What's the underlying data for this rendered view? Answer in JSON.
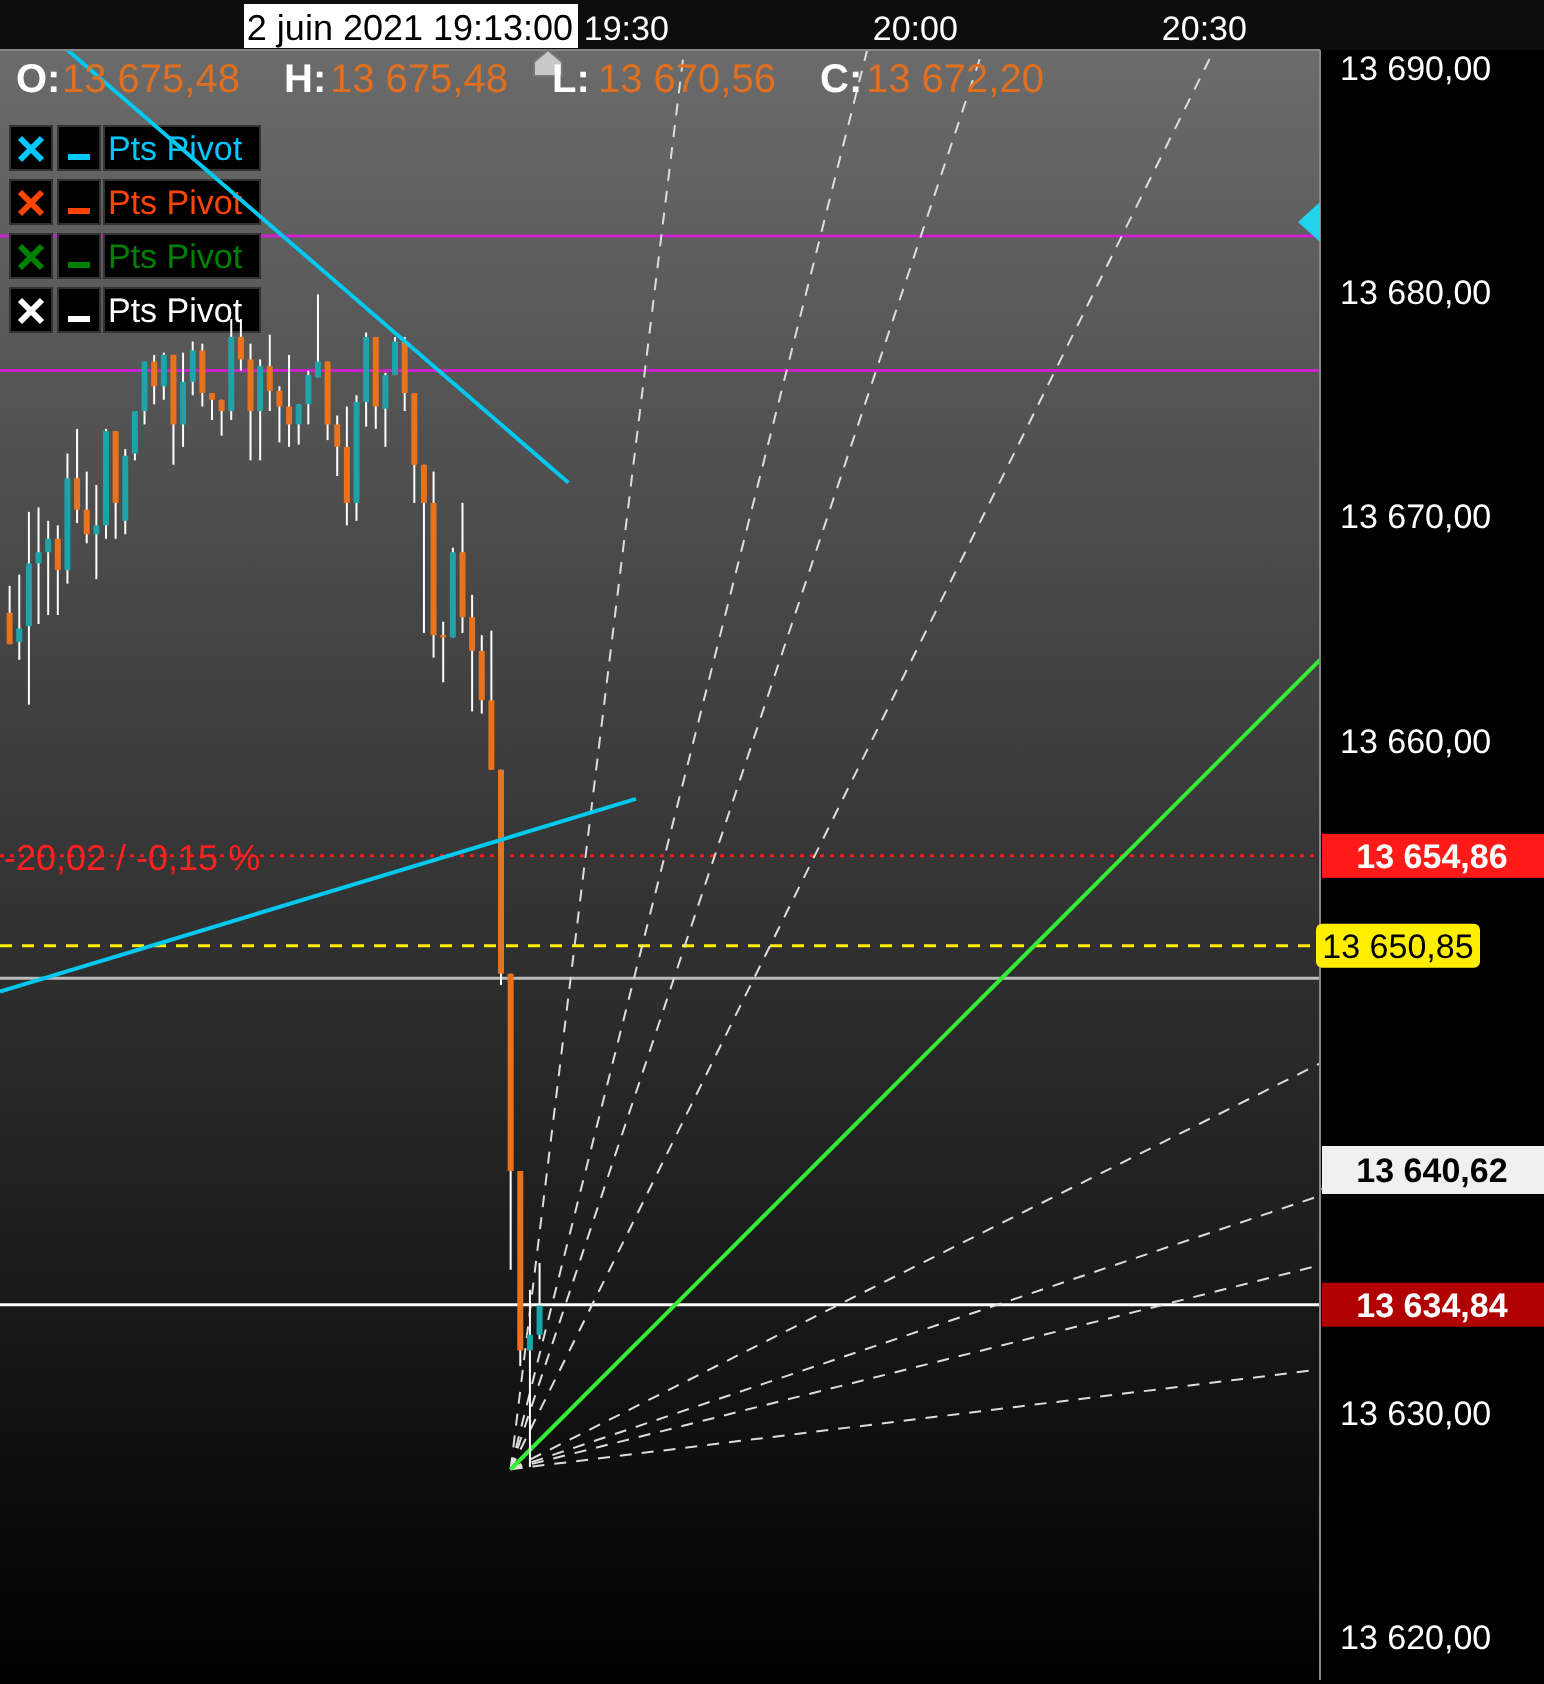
{
  "chart_data": {
    "type": "candlestick",
    "x": [
      "2021-06-02T18:26",
      "2021-06-02T18:27",
      "2021-06-02T18:28",
      "2021-06-02T18:29",
      "2021-06-02T18:30",
      "2021-06-02T18:31",
      "2021-06-02T18:32",
      "2021-06-02T18:33",
      "2021-06-02T18:34",
      "2021-06-02T18:35",
      "2021-06-02T18:36",
      "2021-06-02T18:37",
      "2021-06-02T18:38",
      "2021-06-02T18:39",
      "2021-06-02T18:40",
      "2021-06-02T18:41",
      "2021-06-02T18:42",
      "2021-06-02T18:43",
      "2021-06-02T18:44",
      "2021-06-02T18:45",
      "2021-06-02T18:46",
      "2021-06-02T18:47",
      "2021-06-02T18:48",
      "2021-06-02T18:49",
      "2021-06-02T18:50",
      "2021-06-02T18:51",
      "2021-06-02T18:52",
      "2021-06-02T18:53",
      "2021-06-02T18:54",
      "2021-06-02T18:55",
      "2021-06-02T18:56",
      "2021-06-02T18:57",
      "2021-06-02T18:58",
      "2021-06-02T18:59",
      "2021-06-02T19:00",
      "2021-06-02T19:01",
      "2021-06-02T19:02",
      "2021-06-02T19:03",
      "2021-06-02T19:04",
      "2021-06-02T19:05",
      "2021-06-02T19:06",
      "2021-06-02T19:07",
      "2021-06-02T19:08",
      "2021-06-02T19:09",
      "2021-06-02T19:10",
      "2021-06-02T19:11",
      "2021-06-02T19:12",
      "2021-06-02T19:13",
      "2021-06-02T19:14",
      "2021-06-02T19:15",
      "2021-06-02T19:16",
      "2021-06-02T19:17",
      "2021-06-02T19:18",
      "2021-06-02T19:19",
      "2021-06-02T19:20",
      "2021-06-02T19:21"
    ],
    "ohlc": [
      [
        13665.7,
        13666.9,
        13664.3,
        13664.3
      ],
      [
        13664.4,
        13667.4,
        13663.6,
        13665.0
      ],
      [
        13665.1,
        13670.2,
        13661.6,
        13667.9
      ],
      [
        13667.9,
        13670.4,
        13665.2,
        13668.4
      ],
      [
        13668.4,
        13669.8,
        13665.6,
        13669.0
      ],
      [
        13669.0,
        13669.6,
        13665.6,
        13667.6
      ],
      [
        13667.6,
        13672.8,
        13667.0,
        13671.7
      ],
      [
        13671.7,
        13673.9,
        13669.7,
        13670.3
      ],
      [
        13670.3,
        13672.0,
        13668.8,
        13669.2
      ],
      [
        13669.2,
        13671.4,
        13667.2,
        13669.6
      ],
      [
        13669.6,
        13673.9,
        13669.0,
        13673.8
      ],
      [
        13673.8,
        13673.8,
        13669.0,
        13670.6
      ],
      [
        13669.8,
        13673.0,
        13669.2,
        13672.7
      ],
      [
        13672.8,
        13674.7,
        13672.5,
        13674.7
      ],
      [
        13674.7,
        13676.9,
        13674.1,
        13676.9
      ],
      [
        13676.9,
        13677.2,
        13675.0,
        13675.8
      ],
      [
        13675.8,
        13677.3,
        13675.2,
        13677.2
      ],
      [
        13677.2,
        13677.2,
        13672.3,
        13674.1
      ],
      [
        13674.1,
        13677.3,
        13673.1,
        13676.0
      ],
      [
        13676.0,
        13677.8,
        13675.4,
        13677.4
      ],
      [
        13677.4,
        13677.7,
        13674.9,
        13675.5
      ],
      [
        13675.5,
        13675.5,
        13674.3,
        13675.2
      ],
      [
        13675.2,
        13675.2,
        13673.6,
        13674.7
      ],
      [
        13674.7,
        13678.8,
        13674.3,
        13678.0
      ],
      [
        13678.0,
        13678.8,
        13676.5,
        13677.0
      ],
      [
        13677.0,
        13677.7,
        13672.5,
        13674.7
      ],
      [
        13674.7,
        13677.0,
        13672.5,
        13676.7
      ],
      [
        13676.7,
        13678.1,
        13674.7,
        13675.6
      ],
      [
        13675.6,
        13675.8,
        13673.3,
        13674.9
      ],
      [
        13674.9,
        13677.2,
        13673.1,
        13674.1
      ],
      [
        13674.1,
        13675.0,
        13673.2,
        13675.0
      ],
      [
        13675.0,
        13676.5,
        13674.1,
        13676.3
      ],
      [
        13676.2,
        13679.9,
        13676.2,
        13676.9
      ],
      [
        13676.9,
        13676.9,
        13673.4,
        13674.1
      ],
      [
        13674.1,
        13674.5,
        13671.8,
        13673.1
      ],
      [
        13673.1,
        13674.9,
        13669.6,
        13670.6
      ],
      [
        13670.6,
        13675.4,
        13669.8,
        13675.1
      ],
      [
        13675.1,
        13678.2,
        13674.0,
        13678.0
      ],
      [
        13678.0,
        13678.0,
        13673.9,
        13674.9
      ],
      [
        13674.8,
        13676.4,
        13673.1,
        13676.3
      ],
      [
        13676.3,
        13678.0,
        13676.3,
        13677.8
      ],
      [
        13677.8,
        13678.0,
        13674.7,
        13675.5
      ],
      [
        13675.5,
        13675.5,
        13670.6,
        13672.3
      ],
      [
        13672.3,
        13672.3,
        13664.8,
        13670.6
      ],
      [
        13670.6,
        13672.0,
        13663.7,
        13664.7
      ],
      [
        13664.7,
        13665.3,
        13662.6,
        13664.6
      ],
      [
        13664.6,
        13668.6,
        13664.6,
        13668.4
      ],
      [
        13668.4,
        13670.6,
        13664.8,
        13665.5
      ],
      [
        13665.5,
        13666.5,
        13661.3,
        13664.0
      ],
      [
        13664.0,
        13664.7,
        13661.2,
        13661.8
      ],
      [
        13661.8,
        13664.9,
        13658.7,
        13658.7
      ],
      [
        13658.7,
        13658.7,
        13649.1,
        13649.6
      ],
      [
        13649.6,
        13649.6,
        13636.4,
        13640.8
      ],
      [
        13640.8,
        13640.8,
        13632.1,
        13632.8
      ],
      [
        13632.8,
        13635.5,
        13627.6,
        13633.5
      ],
      [
        13633.5,
        13636.7,
        13633.3,
        13634.8
      ]
    ],
    "series": [
      {
        "type": "line",
        "color": "#00c8ee",
        "line_style": "solid",
        "x": [
          "2021-06-02T18:32",
          "2021-06-02T19:24"
        ],
        "values": [
          13690.8,
          13671.5
        ]
      },
      {
        "type": "line",
        "color": "#00c8ee",
        "line_style": "solid",
        "x": [
          "2021-06-02T18:25",
          "2021-06-02T19:31"
        ],
        "values": [
          13648.8,
          13657.4
        ]
      },
      {
        "type": "line",
        "color": "#33ee33",
        "line_style": "solid",
        "x": [
          "2021-06-02T19:18",
          "2021-06-02T20:42"
        ],
        "values": [
          13627.5,
          13663.6
        ]
      },
      {
        "type": "line",
        "color": "#dddddd",
        "line_style": "dashed",
        "x": [
          "2021-06-02T19:18",
          "2021-06-02T19:36"
        ],
        "values": [
          13627.5,
          13690.8
        ]
      },
      {
        "type": "line",
        "color": "#dddddd",
        "line_style": "dashed",
        "x": [
          "2021-06-02T19:18",
          "2021-06-02T19:55"
        ],
        "values": [
          13627.5,
          13690.8
        ]
      },
      {
        "type": "line",
        "color": "#dddddd",
        "line_style": "dashed",
        "x": [
          "2021-06-02T19:18",
          "2021-06-02T20:07"
        ],
        "values": [
          13627.5,
          13690.8
        ]
      },
      {
        "type": "line",
        "color": "#dddddd",
        "line_style": "dashed",
        "x": [
          "2021-06-02T19:18",
          "2021-06-02T20:31"
        ],
        "values": [
          13627.5,
          13690.8
        ]
      },
      {
        "type": "line",
        "color": "#dddddd",
        "line_style": "dashed",
        "x": [
          "2021-06-02T19:18",
          "2021-06-02T20:42"
        ],
        "values": [
          13627.5,
          13645.6
        ]
      },
      {
        "type": "line",
        "color": "#dddddd",
        "line_style": "dashed",
        "x": [
          "2021-06-02T19:18",
          "2021-06-02T20:42"
        ],
        "values": [
          13627.5,
          13639.7
        ]
      },
      {
        "type": "line",
        "color": "#dddddd",
        "line_style": "dashed",
        "x": [
          "2021-06-02T19:18",
          "2021-06-02T20:42"
        ],
        "values": [
          13627.5,
          13636.6
        ]
      },
      {
        "type": "line",
        "color": "#dddddd",
        "line_style": "dashed",
        "x": [
          "2021-06-02T19:18",
          "2021-06-02T20:41"
        ],
        "values": [
          13627.5,
          13631.9
        ]
      }
    ],
    "xlim": [
      "2021-06-02T18:25",
      "2021-06-02T20:42"
    ],
    "xticks": [
      {
        "value": "2021-06-02T19:30",
        "label": "19:30"
      },
      {
        "value": "2021-06-02T20:00",
        "label": "20:00"
      },
      {
        "value": "2021-06-02T20:30",
        "label": "20:30"
      }
    ],
    "ylim": [
      13618.1,
      13690.8
    ],
    "yticks": [
      {
        "value": 13620,
        "label": "13 620,00"
      },
      {
        "value": 13630,
        "label": "13 630,00"
      },
      {
        "value": 13640,
        "label": null
      },
      {
        "value": 13650,
        "label": null
      },
      {
        "value": 13660,
        "label": "13 660,00"
      },
      {
        "value": 13670,
        "label": "13 670,00"
      },
      {
        "value": 13680,
        "label": "13 680,00"
      },
      {
        "value": 13690,
        "label": "13 690,00"
      }
    ],
    "ref_lines": [
      {
        "axis": "y",
        "value": 13682.5,
        "color": "#cc22cc",
        "line_style": "solid"
      },
      {
        "axis": "y",
        "value": 13676.5,
        "color": "#cc22cc",
        "line_style": "solid"
      },
      {
        "axis": "y",
        "value": 13654.86,
        "label": "13 654,86",
        "color": "#ff1a1a",
        "line_style": "dotted"
      },
      {
        "axis": "y",
        "value": 13650.85,
        "label": "13 650,85",
        "color": "#ffee00",
        "line_style": "dashed"
      },
      {
        "axis": "y",
        "value": 13649.4,
        "color": "#bbbbbb",
        "line_style": "solid"
      },
      {
        "axis": "y",
        "value": 13634.84,
        "label": "13 634,84",
        "color": "#ffffff",
        "line_style": "solid"
      }
    ],
    "annotations": [
      "2 juin 2021 19:13:00",
      "O:",
      "13 675,48",
      "H:",
      "13 675,48",
      "L:",
      "13 670,56",
      "C:",
      "13 672,20",
      "Pts Pivot",
      "Pts Pivot",
      "Pts Pivot",
      "Pts Pivot",
      {
        "text": "-20,02 / -0,15 %",
        "x": "2021-06-02T18:25",
        "y": 13654.86
      },
      "13 640,62"
    ],
    "grid": false
  }
}
